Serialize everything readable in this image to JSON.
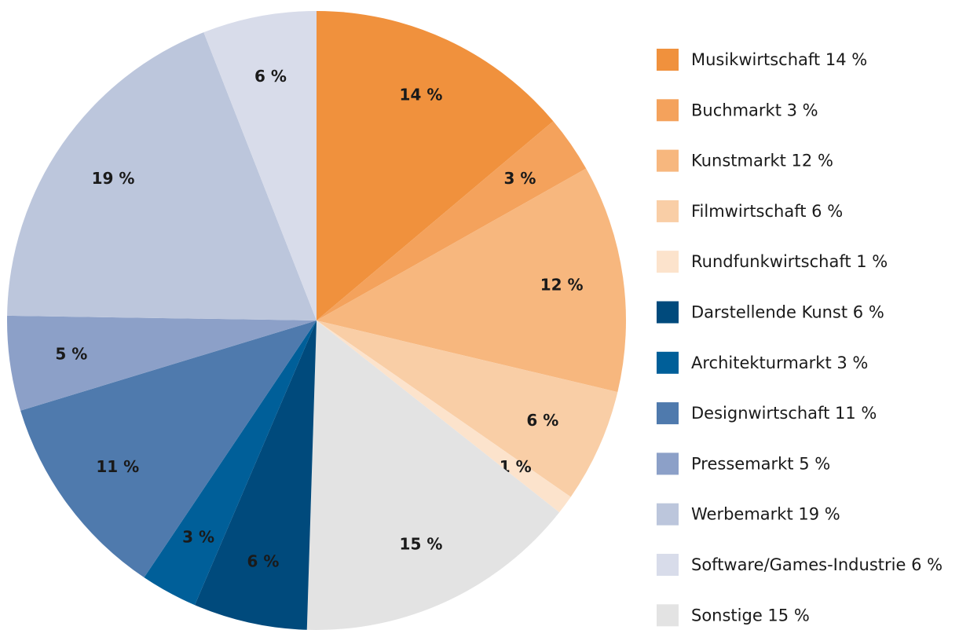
{
  "chart_data": {
    "type": "pie",
    "categories": [
      "Musikwirtschaft",
      "Buchmarkt",
      "Kunstmarkt",
      "Filmwirtschaft",
      "Rundfunkwirtschaft",
      "Sonstige",
      "Darstellende Kunst",
      "Architekturmarkt",
      "Designwirtschaft",
      "Pressemarkt",
      "Werbemarkt",
      "Software/Games-Industrie"
    ],
    "values": [
      14,
      3,
      12,
      6,
      1,
      15,
      6,
      3,
      11,
      5,
      19,
      6
    ],
    "value_labels": [
      "14 %",
      "3 %",
      "12 %",
      "6 %",
      "1 %",
      "15 %",
      "6 %",
      "3 %",
      "11 %",
      "5 %",
      "19 %",
      "6 %"
    ],
    "colors": [
      "#f0913d",
      "#f4a25c",
      "#f7b77e",
      "#f9cea6",
      "#fce3cc",
      "#e3e3e3",
      "#004a7c",
      "#005f99",
      "#4f7aad",
      "#8ca0c8",
      "#bcc6dc",
      "#d8dcea"
    ],
    "legend": [
      {
        "label": "Musikwirtschaft 14 %",
        "color": "#f0913d"
      },
      {
        "label": "Buchmarkt 3 %",
        "color": "#f4a25c"
      },
      {
        "label": "Kunstmarkt 12 %",
        "color": "#f7b77e"
      },
      {
        "label": "Filmwirtschaft 6 %",
        "color": "#f9cea6"
      },
      {
        "label": "Rundfunkwirtschaft 1 %",
        "color": "#fce3cc"
      },
      {
        "label": "Darstellende Kunst 6 %",
        "color": "#004a7c"
      },
      {
        "label": "Architekturmarkt 3 %",
        "color": "#005f99"
      },
      {
        "label": "Designwirtschaft 11 %",
        "color": "#4f7aad"
      },
      {
        "label": "Pressemarkt 5 %",
        "color": "#8ca0c8"
      },
      {
        "label": "Werbemarkt 19 %",
        "color": "#bcc6dc"
      },
      {
        "label": "Software/Games-Industrie 6 %",
        "color": "#d8dcea"
      },
      {
        "label": "Sonstige 15 %",
        "color": "#e3e3e3"
      }
    ]
  }
}
